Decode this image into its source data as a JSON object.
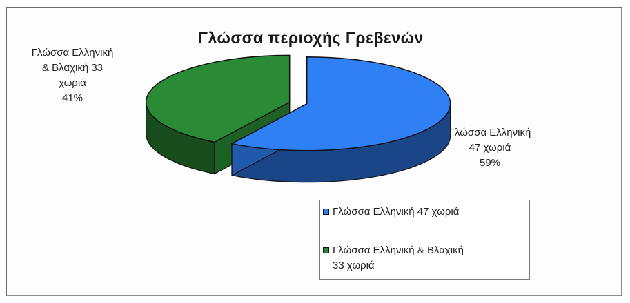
{
  "chart_data": {
    "type": "pie",
    "title": "Γλώσσα περιοχής Γρεβενών",
    "slices": [
      {
        "name": "Γλώσσα Ελληνική 47 χωριά",
        "value": 47,
        "percent": "59%",
        "color": "#2f7ff5",
        "label_lines": [
          "Γλώσσα Ελληνική",
          "47 χωριά",
          "59%"
        ]
      },
      {
        "name": "Γλώσσα Ελληνική & Βλαχική 33 χωριά",
        "value": 33,
        "percent": "41%",
        "color": "#2a8a35",
        "label_lines": [
          "Γλώσσα Ελληνική",
          "& Βλαχική 33",
          "χωριά",
          "41%"
        ]
      }
    ],
    "legend": {
      "position": "bottom-right",
      "items": [
        {
          "lines": [
            "Γλώσσα Ελληνική 47 χωριά"
          ],
          "color": "#2f7ff5"
        },
        {
          "lines": [
            "Γλώσσα Ελληνική & Βλαχική",
            "33 χωριά"
          ],
          "color": "#2a8a35"
        }
      ]
    }
  }
}
